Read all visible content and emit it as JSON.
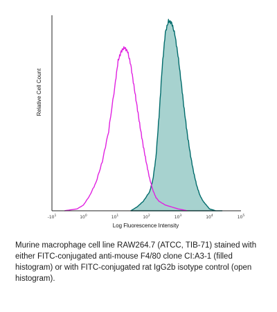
{
  "chart_data": {
    "type": "area",
    "xlabel": "Log Fluorescence Intensity",
    "ylabel": "Relative Cell Count",
    "x_scale": "log",
    "xlim": [
      -1,
      5
    ],
    "ylim": [
      0,
      1.03
    ],
    "x_ticks": [
      {
        "value": -1,
        "base": "-10",
        "exp": "1"
      },
      {
        "value": 0,
        "base": "10",
        "exp": "0"
      },
      {
        "value": 1,
        "base": "10",
        "exp": "1"
      },
      {
        "value": 2,
        "base": "10",
        "exp": "2"
      },
      {
        "value": 3,
        "base": "10",
        "exp": "3"
      },
      {
        "value": 4,
        "base": "10",
        "exp": "4"
      },
      {
        "value": 5,
        "base": "10",
        "exp": "5"
      }
    ],
    "grid": false,
    "legend": "none",
    "series": [
      {
        "style": "open",
        "color": "#e020e0",
        "x": [
          -0.6,
          -0.2,
          0.0,
          0.2,
          0.4,
          0.6,
          0.8,
          1.0,
          1.1,
          1.2,
          1.3,
          1.4,
          1.5,
          1.6,
          1.7,
          1.8,
          1.9,
          2.0,
          2.1,
          2.2,
          2.3,
          2.4,
          2.6,
          2.8,
          3.0,
          3.3
        ],
        "y": [
          0.0,
          0.01,
          0.03,
          0.08,
          0.15,
          0.26,
          0.42,
          0.66,
          0.79,
          0.84,
          0.86,
          0.84,
          0.77,
          0.66,
          0.55,
          0.44,
          0.34,
          0.25,
          0.17,
          0.11,
          0.07,
          0.05,
          0.03,
          0.02,
          0.01,
          0.0
        ]
      },
      {
        "style": "filled",
        "color": "#006b6b",
        "fill": "#a7d2cf",
        "x": [
          1.5,
          1.7,
          1.9,
          2.1,
          2.2,
          2.3,
          2.4,
          2.5,
          2.6,
          2.7,
          2.8,
          2.9,
          3.0,
          3.1,
          3.2,
          3.3,
          3.4,
          3.5,
          3.6,
          3.7,
          3.8,
          3.9,
          4.0,
          4.2,
          4.4
        ],
        "y": [
          0.0,
          0.02,
          0.05,
          0.1,
          0.16,
          0.28,
          0.5,
          0.76,
          0.94,
          1.0,
          0.99,
          0.93,
          0.82,
          0.68,
          0.53,
          0.4,
          0.29,
          0.2,
          0.13,
          0.08,
          0.05,
          0.03,
          0.01,
          0.0,
          0.0
        ]
      }
    ]
  },
  "caption": "Murine macrophage cell line RAW264.7 (ATCC, TIB-71) stained with either FITC-conjugated anti-mouse F4/80 clone CI:A3-1 (filled histogram) or with FITC-conjugated rat IgG2b isotype control (open histogram)."
}
